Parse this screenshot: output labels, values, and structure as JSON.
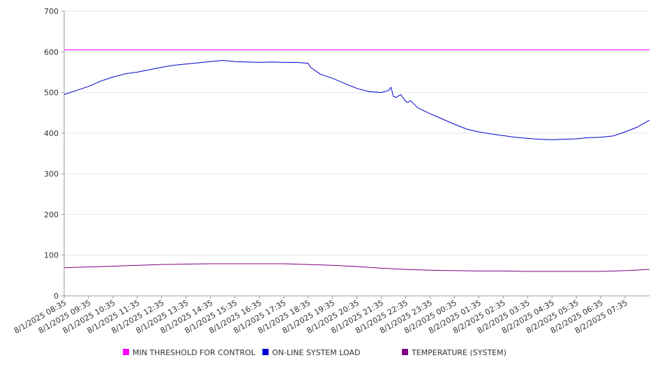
{
  "chart_data": {
    "type": "line",
    "ylim": [
      0,
      700
    ],
    "y_ticks": [
      0,
      100,
      200,
      300,
      400,
      500,
      600,
      700
    ],
    "grid": "horizontal",
    "legend_position": "bottom",
    "x_categories": [
      "8/1/2025 08:35",
      "8/1/2025 09:35",
      "8/1/2025 10:35",
      "8/1/2025 11:35",
      "8/1/2025 12:35",
      "8/1/2025 13:35",
      "8/1/2025 14:35",
      "8/1/2025 15:35",
      "8/1/2025 16:35",
      "8/1/2025 17:35",
      "8/1/2025 18:35",
      "8/1/2025 19:35",
      "8/1/2025 20:35",
      "8/1/2025 21:35",
      "8/1/2025 22:35",
      "8/1/2025 23:35",
      "8/2/2025 00:35",
      "8/2/2025 01:35",
      "8/2/2025 02:35",
      "8/2/2025 03:35",
      "8/2/2025 04:35",
      "8/2/2025 05:35",
      "8/2/2025 06:35",
      "8/2/2025 07:35"
    ],
    "series": [
      {
        "name": "MIN THRESHOLD FOR CONTROL",
        "color": "#ff00ff",
        "x": [
          0,
          24
        ],
        "values": [
          605,
          605
        ]
      },
      {
        "name": "ON-LINE SYSTEM LOAD",
        "color": "#0000cc",
        "x": [
          0,
          0.5,
          1,
          1.5,
          2,
          2.5,
          3,
          3.5,
          4,
          4.5,
          5,
          5.5,
          6,
          6.5,
          7,
          7.5,
          8,
          8.5,
          9,
          9.5,
          10,
          10.1,
          10.5,
          11,
          11.5,
          12,
          12.5,
          13,
          13.3,
          13.4,
          13.5,
          13.6,
          13.8,
          14,
          14.1,
          14.2,
          14.5,
          15,
          15.5,
          16,
          16.5,
          17,
          17.5,
          18,
          18.5,
          19,
          19.5,
          20,
          20.5,
          21,
          21.5,
          22,
          22.5,
          23,
          23.5,
          24
        ],
        "values": [
          495,
          505,
          515,
          528,
          538,
          546,
          550,
          556,
          562,
          567,
          570,
          573,
          576,
          579,
          576,
          575,
          574,
          575,
          574,
          574,
          572,
          562,
          545,
          535,
          522,
          510,
          502,
          500,
          505,
          513,
          490,
          488,
          495,
          478,
          476,
          480,
          462,
          448,
          435,
          422,
          410,
          403,
          398,
          394,
          390,
          387,
          385,
          384,
          385,
          386,
          389,
          390,
          393,
          403,
          415,
          432
        ]
      },
      {
        "name": "TEMPERATURE (SYSTEM)",
        "color": "#800080",
        "x": [
          0,
          1,
          2,
          3,
          4,
          5,
          6,
          7,
          8,
          9,
          10,
          11,
          12,
          13,
          14,
          15,
          16,
          17,
          18,
          19,
          20,
          21,
          22,
          23,
          24
        ],
        "values": [
          69,
          71,
          73,
          75,
          77,
          78,
          79,
          79,
          79,
          79,
          77,
          75,
          72,
          68,
          65,
          63,
          62,
          61,
          61,
          60,
          60,
          60,
          60,
          62,
          65
        ]
      }
    ]
  }
}
